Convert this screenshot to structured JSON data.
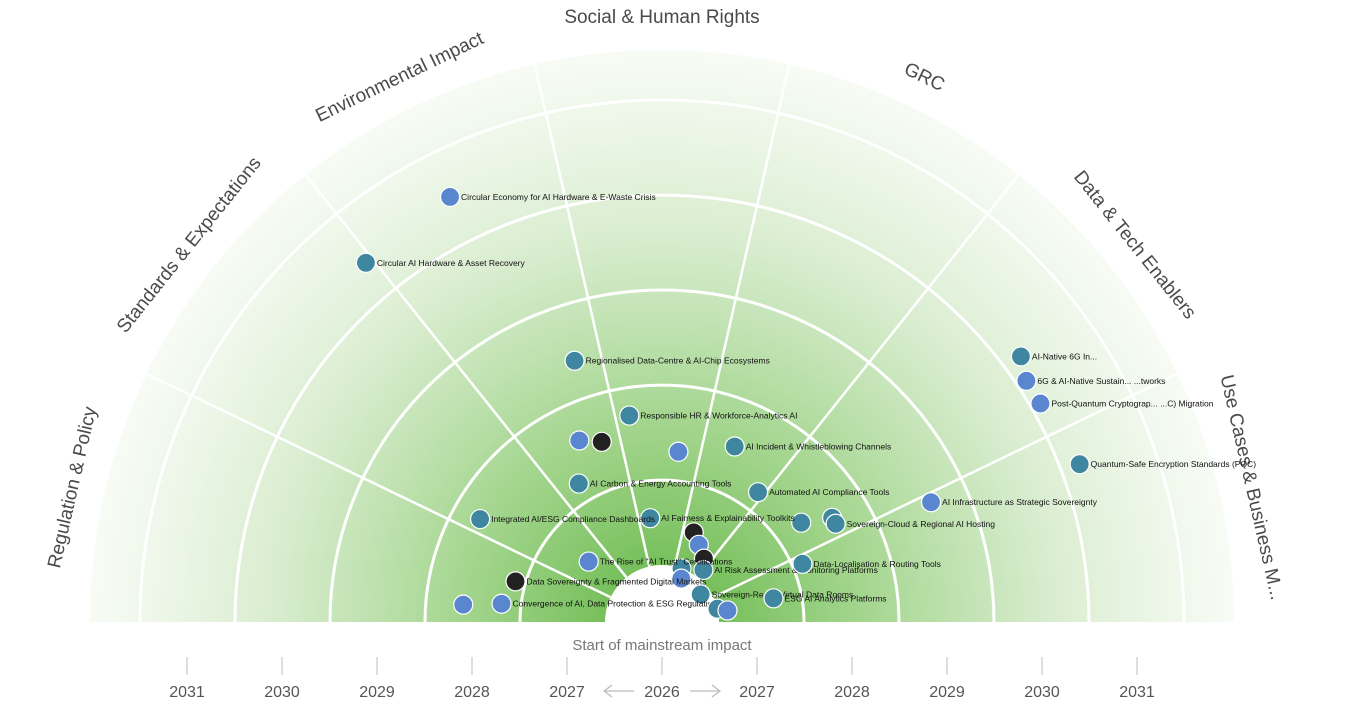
{
  "chart_data": {
    "type": "radar",
    "center_year": "2026",
    "start_label": "Start of mainstream impact",
    "rings": [
      2027,
      2028,
      2029,
      2030,
      2031
    ],
    "axis_ticks_left": [
      "2031",
      "2030",
      "2029",
      "2028",
      "2027"
    ],
    "axis_ticks_right": [
      "2027",
      "2028",
      "2029",
      "2030",
      "2031"
    ],
    "sectors": [
      {
        "name": "Regulation & Policy"
      },
      {
        "name": "Standards & Expectations"
      },
      {
        "name": "Environmental Impact"
      },
      {
        "name": "Social & Human Rights"
      },
      {
        "name": "GRC"
      },
      {
        "name": "Data & Tech Enablers"
      },
      {
        "name": "Use Cases & Business M..."
      }
    ],
    "colors": {
      "teal": "#3f86a0",
      "blue": "#5a86d0",
      "dark": "#222222",
      "ring_outer": "#eff7ea",
      "ring_inner": "#5bb23b"
    },
    "points": [
      {
        "label": "Circular Economy for AI Hardware & E-Waste Crisis",
        "year": 2030.4,
        "angle": 116.5,
        "color": "blue"
      },
      {
        "label": "Circular AI Hardware & Asset Recovery",
        "year": 2030.3,
        "angle": 129.5,
        "color": "teal"
      },
      {
        "label": "AI-Native 6G In...",
        "year": 2030.1,
        "angle": 36.5,
        "color": "teal"
      },
      {
        "label": "6G & AI-Native Sustain... ...tworks",
        "year": 2030.0,
        "angle": 33.5,
        "color": "blue"
      },
      {
        "label": "Post-Quantum Cryptograp... ...C) Migration",
        "year": 2030.0,
        "angle": 30.0,
        "color": "blue"
      },
      {
        "label": "Quantum-Safe Encryption Standards (PQC)",
        "year": 2030.1,
        "angle": 20.7,
        "color": "teal"
      },
      {
        "label": "Regionalised Data-Centre & AI-Chip Ecosystems",
        "year": 2028.3,
        "angle": 108.5,
        "color": "teal"
      },
      {
        "label": "Responsible HR & Workforce-Analytics AI",
        "year": 2027.6,
        "angle": 99.0,
        "color": "teal"
      },
      {
        "label": "",
        "year": 2027.4,
        "angle": 108.5,
        "color": "dark"
      },
      {
        "label": "",
        "year": 2027.5,
        "angle": 114.5,
        "color": "blue"
      },
      {
        "label": "",
        "year": 2027.2,
        "angle": 84.5,
        "color": "blue"
      },
      {
        "label": "AI Incident & Whistleblowing Channels",
        "year": 2027.4,
        "angle": 67.5,
        "color": "teal"
      },
      {
        "label": "AI Carbon & Energy Accounting Tools",
        "year": 2027.1,
        "angle": 121.0,
        "color": "teal"
      },
      {
        "label": "Automated AI Compliance Tools",
        "year": 2027.1,
        "angle": 53.5,
        "color": "teal"
      },
      {
        "label": "AI Infrastructure as Strategic Sovereignty",
        "year": 2028.5,
        "angle": 24.0,
        "color": "blue"
      },
      {
        "label": "",
        "year": 2027.2,
        "angle": 35.5,
        "color": "teal"
      },
      {
        "label": "",
        "year": 2027.5,
        "angle": 31.5,
        "color": "teal"
      },
      {
        "label": "Sovereign-Cloud & Regional AI Hosting",
        "year": 2027.5,
        "angle": 29.5,
        "color": "teal"
      },
      {
        "label": "AI Fairness & Explainability Toolkits",
        "year": 2026.5,
        "angle": 96.5,
        "color": "teal"
      },
      {
        "label": "Integrated AI/ESG Compliance Dashboards",
        "year": 2027.6,
        "angle": 150.5,
        "color": "teal"
      },
      {
        "label": "",
        "year": 2026.4,
        "angle": 70.5,
        "color": "dark"
      },
      {
        "label": "",
        "year": 2026.3,
        "angle": 64.5,
        "color": "blue"
      },
      {
        "label": "",
        "year": 2026.2,
        "angle": 56.5,
        "color": "dark"
      },
      {
        "label": "AI Risk Assessment & Monitoring Platforms",
        "year": 2026.1,
        "angle": 51.5,
        "color": "teal"
      },
      {
        "label": "",
        "year": 2026.0,
        "angle": 70.0,
        "color": "teal"
      },
      {
        "label": "",
        "year": 2025.9,
        "angle": 66.0,
        "color": "blue"
      },
      {
        "label": "The Rise of \"AI Trust\" Certifications",
        "year": 2026.4,
        "angle": 140.5,
        "color": "blue"
      },
      {
        "label": "Data-Localisation & Routing Tools",
        "year": 2027.0,
        "angle": 22.5,
        "color": "teal"
      },
      {
        "label": "Data Sovereignty & Fragmented Digital Markets",
        "year": 2027.0,
        "angle": 164.5,
        "color": "dark"
      },
      {
        "label": "Sovereign-Ready Virtual Data Rooms",
        "year": 2025.9,
        "angle": 35.5,
        "color": "teal"
      },
      {
        "label": "Convergence of AI, Data Protection & ESG Regulation",
        "year": 2027.1,
        "angle": 173.5,
        "color": "blue"
      },
      {
        "label": "",
        "year": 2027.5,
        "angle": 175.0,
        "color": "blue"
      },
      {
        "label": "",
        "year": 2026.0,
        "angle": 13.5,
        "color": "teal"
      },
      {
        "label": "",
        "year": 2026.1,
        "angle": 10.0,
        "color": "blue"
      },
      {
        "label": "ESG AI Analytics Platforms",
        "year": 2026.6,
        "angle": 12.0,
        "color": "teal"
      }
    ]
  }
}
